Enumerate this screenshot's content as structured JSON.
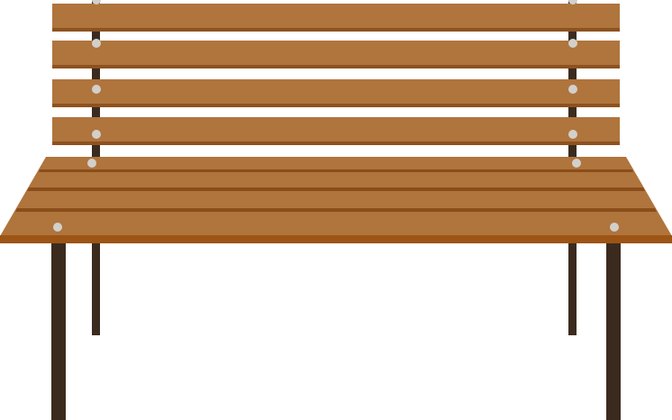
{
  "illustration": {
    "subject": "park-bench",
    "backrest_slats": 4,
    "seat_planks": 4,
    "colors": {
      "wood": "#B0743D",
      "wood_edge": "#8E5220",
      "seat_front_edge": "#9C5514",
      "plank_gap": "#8A4E1A",
      "metal_frame": "#3B2B1F",
      "bolt": "#D2D0CB",
      "background": "#FFFFFF"
    }
  }
}
